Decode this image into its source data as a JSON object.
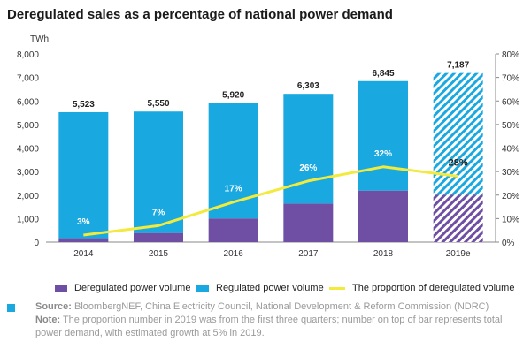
{
  "title": "Deregulated sales as a percentage of national power demand",
  "colors": {
    "deregulated": "#6e4fa3",
    "regulated": "#19a8e0",
    "proportion": "#f2ea3c",
    "forecast_hatch_top": "#19a8e0",
    "forecast_hatch_bottom": "#6e4fa3",
    "axis_text": "#333333",
    "grid": "#cccccc"
  },
  "chart_data": {
    "type": "bar",
    "categories": [
      "2014",
      "2015",
      "2016",
      "2017",
      "2018",
      "2019e"
    ],
    "left_axis_unit": "TWh",
    "ylim_left": [
      0,
      8000
    ],
    "yticks_left": [
      "0",
      "1,000",
      "2,000",
      "3,000",
      "4,000",
      "5,000",
      "6,000",
      "7,000",
      "8,000"
    ],
    "ylim_right": [
      0,
      80
    ],
    "yticks_right": [
      "0%",
      "10%",
      "20%",
      "30%",
      "40%",
      "50%",
      "60%",
      "70%",
      "80%"
    ],
    "grid": false,
    "legend_position": "bottom",
    "series": [
      {
        "name": "Deregulated power volume",
        "kind": "bar-stacked",
        "values": [
          166,
          389,
          1006,
          1639,
          2190,
          2012
        ]
      },
      {
        "name": "Regulated power volume",
        "kind": "bar-stacked",
        "values": [
          5357,
          5161,
          4914,
          4664,
          4655,
          5175
        ]
      },
      {
        "name": "The proportion of deregulated volume",
        "kind": "line",
        "axis": "right",
        "values": [
          3,
          7,
          17,
          26,
          32,
          28
        ]
      }
    ],
    "total_labels": [
      "5,523",
      "5,550",
      "5,920",
      "6,303",
      "6,845",
      "7,187"
    ],
    "percent_labels": [
      "3%",
      "7%",
      "17%",
      "26%",
      "32%",
      "28%"
    ],
    "forecast_categories": [
      "2019e"
    ]
  },
  "footer": {
    "source_label": "Source:",
    "source_text": " BloombergNEF, China Electricity Council, National Development & Reform Commission (NDRC)",
    "note_label": "Note:",
    "note_text": " The proportion number in 2019 was from the first three quarters; number on top of bar represents total power demand, with estimated growth at 5% in 2019."
  }
}
